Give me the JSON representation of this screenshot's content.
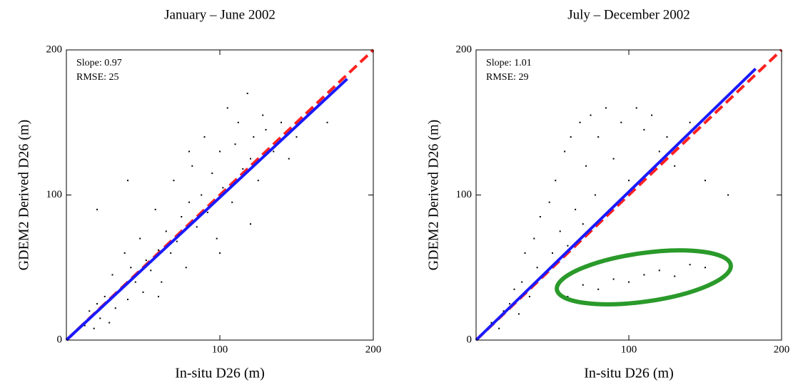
{
  "chart_data": [
    {
      "type": "scatter",
      "title": "January – June 2002",
      "x_label": "In-situ D26 (m)",
      "y_label": "GDEM2 Derived D26 (m)",
      "annotations": [
        "Slope: 0.97",
        "RMSE: 25"
      ],
      "xlim": [
        0,
        200
      ],
      "ylim": [
        0,
        200
      ],
      "xticks": [
        100,
        200
      ],
      "yticks": [
        0,
        100,
        200
      ],
      "color": "#000000",
      "x": [
        12,
        15,
        18,
        20,
        22,
        25,
        28,
        30,
        32,
        35,
        38,
        40,
        42,
        45,
        48,
        50,
        52,
        55,
        58,
        60,
        62,
        65,
        68,
        70,
        72,
        75,
        78,
        80,
        82,
        85,
        88,
        90,
        92,
        95,
        98,
        100,
        102,
        105,
        108,
        110,
        112,
        115,
        118,
        120,
        122,
        125,
        128,
        130,
        135,
        140,
        145,
        150,
        160,
        170,
        20,
        40,
        60,
        80,
        100,
        120
      ],
      "values": [
        10,
        20,
        8,
        25,
        15,
        30,
        12,
        45,
        22,
        35,
        60,
        28,
        50,
        40,
        70,
        33,
        55,
        48,
        90,
        62,
        40,
        75,
        60,
        110,
        68,
        85,
        50,
        95,
        120,
        78,
        100,
        140,
        88,
        115,
        70,
        130,
        105,
        160,
        95,
        135,
        150,
        118,
        170,
        125,
        140,
        110,
        155,
        145,
        130,
        150,
        125,
        140,
        160,
        150,
        90,
        110,
        30,
        130,
        60,
        80
      ],
      "lines": [
        {
          "x": [
            0,
            200
          ],
          "values": [
            0,
            200
          ],
          "color": "#ff2020",
          "dashed": true
        },
        {
          "x": [
            0,
            183
          ],
          "values": [
            0,
            180
          ],
          "color": "#1a1aff",
          "dashed": false
        }
      ]
    },
    {
      "type": "scatter",
      "title": "July – December 2002",
      "x_label": "In-situ D26 (m)",
      "y_label": "GDEM2 Derived D26 (m)",
      "annotations": [
        "Slope: 1.01",
        "RMSE: 29"
      ],
      "xlim": [
        0,
        200
      ],
      "ylim": [
        0,
        200
      ],
      "xticks": [
        100,
        200
      ],
      "yticks": [
        0,
        100,
        200
      ],
      "color": "#000000",
      "x": [
        10,
        15,
        18,
        22,
        25,
        28,
        30,
        32,
        35,
        38,
        40,
        42,
        45,
        48,
        50,
        52,
        55,
        58,
        60,
        62,
        65,
        68,
        70,
        72,
        75,
        78,
        80,
        85,
        90,
        95,
        100,
        105,
        110,
        115,
        120,
        125,
        130,
        140,
        150,
        165,
        60,
        70,
        80,
        90,
        100,
        110,
        120,
        130,
        140,
        150
      ],
      "values": [
        12,
        8,
        20,
        25,
        35,
        18,
        40,
        60,
        30,
        70,
        50,
        85,
        45,
        95,
        60,
        110,
        75,
        130,
        65,
        140,
        90,
        150,
        80,
        120,
        155,
        100,
        140,
        160,
        125,
        150,
        110,
        160,
        145,
        155,
        130,
        140,
        120,
        150,
        110,
        100,
        30,
        38,
        35,
        42,
        40,
        45,
        48,
        44,
        52,
        50
      ],
      "lines": [
        {
          "x": [
            0,
            200
          ],
          "values": [
            0,
            200
          ],
          "color": "#ff2020",
          "dashed": true
        },
        {
          "x": [
            0,
            183
          ],
          "values": [
            0,
            187
          ],
          "color": "#1a1aff",
          "dashed": false
        }
      ]
    }
  ]
}
